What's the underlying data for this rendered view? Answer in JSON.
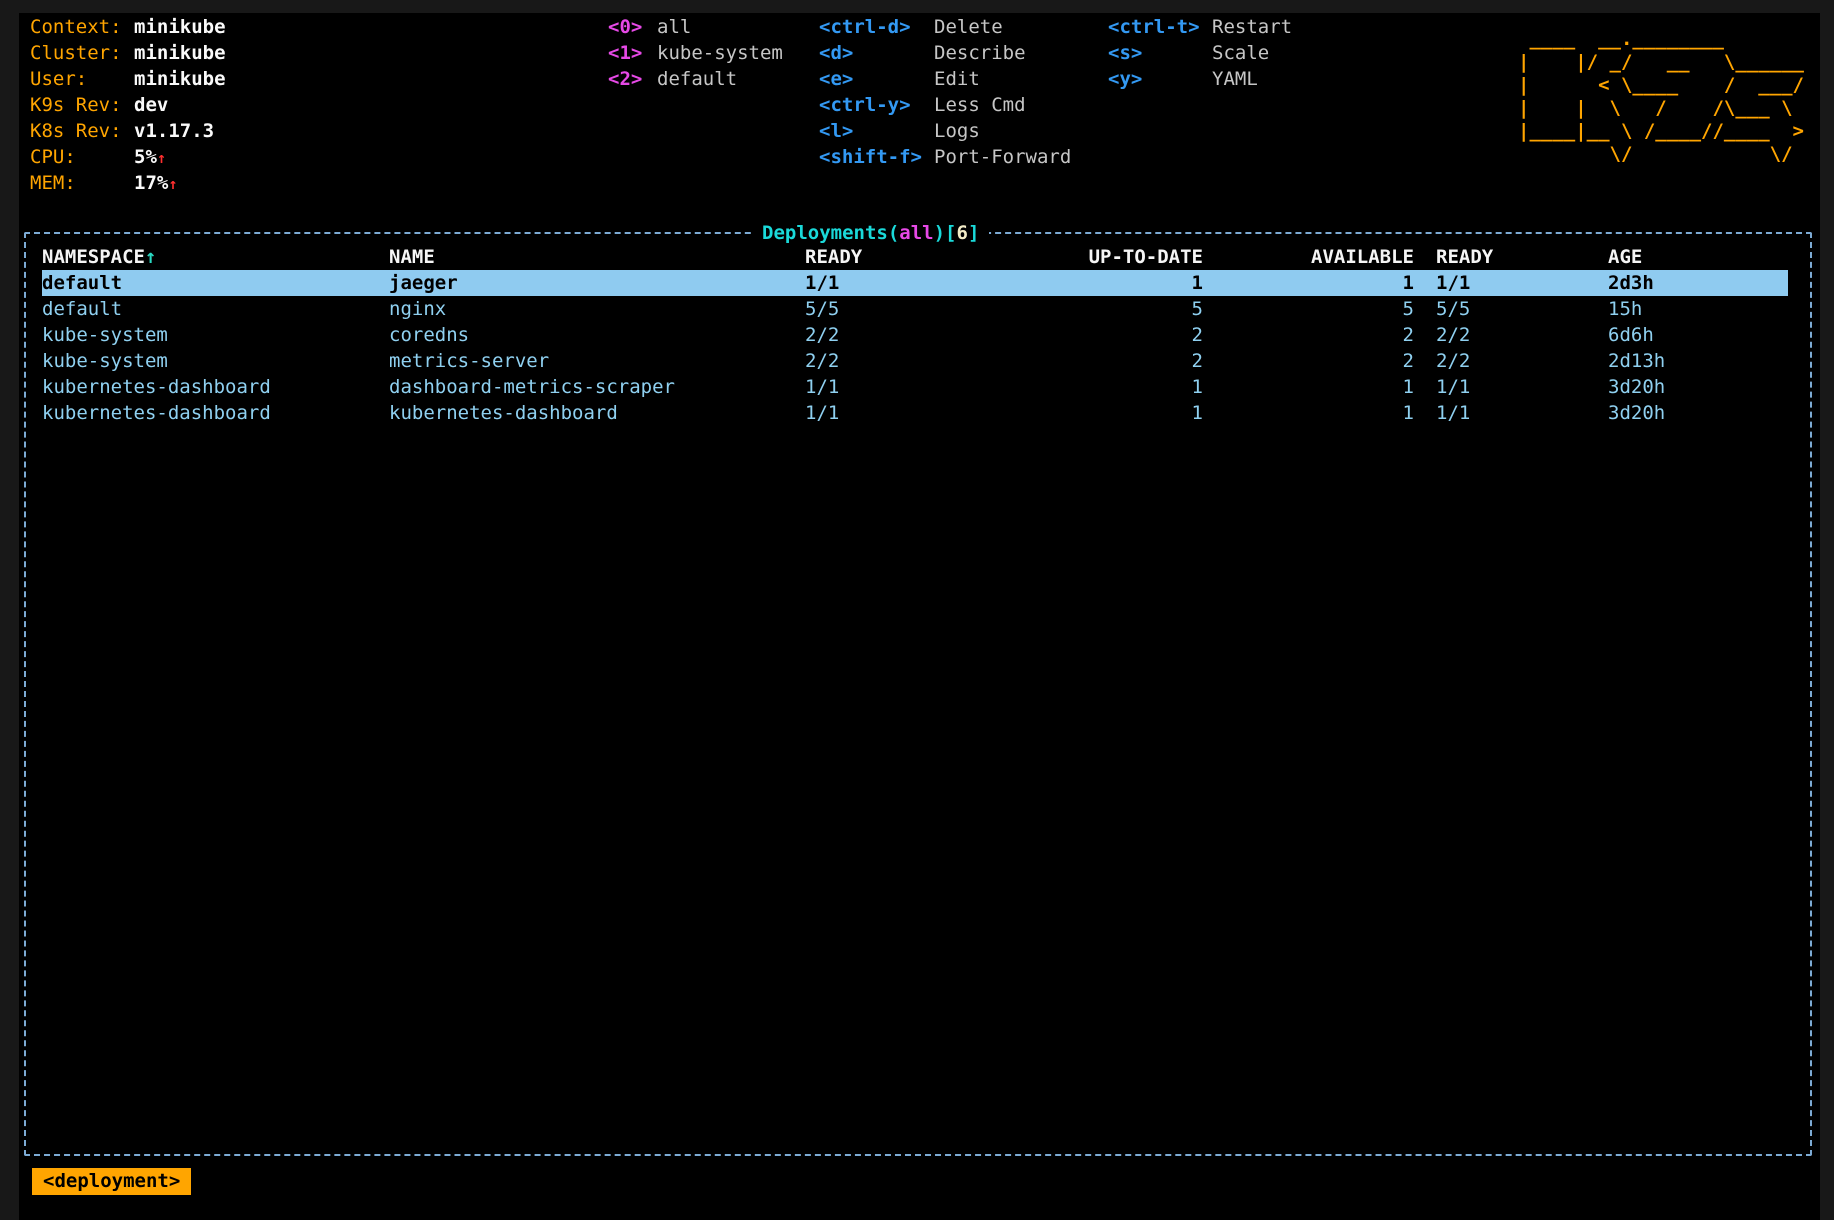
{
  "colors": {
    "accent_orange": "#ffa500",
    "border_blue": "#7caad4",
    "row_text_blue": "#8fd0f0",
    "selected_row_bg": "#8fcbf0",
    "hotkey_blue": "#3399f3",
    "hotkey_magenta": "#e649e6",
    "title_cyan": "#1ad9d9",
    "count_cream": "#f3ecc7",
    "alert_red": "#ff2f2f"
  },
  "header": {
    "info": [
      {
        "label": "Context:",
        "value": "minikube",
        "arrow": ""
      },
      {
        "label": "Cluster:",
        "value": "minikube",
        "arrow": ""
      },
      {
        "label": "User:",
        "value": "minikube",
        "arrow": ""
      },
      {
        "label": "K9s Rev:",
        "value": "dev",
        "arrow": ""
      },
      {
        "label": "K8s Rev:",
        "value": "v1.17.3",
        "arrow": ""
      },
      {
        "label": "CPU:",
        "value": "5%",
        "arrow": "↑"
      },
      {
        "label": "MEM:",
        "value": "17%",
        "arrow": "↑"
      }
    ],
    "namespaces": [
      {
        "key": "<0>",
        "label": "all"
      },
      {
        "key": "<1>",
        "label": "kube-system"
      },
      {
        "key": "<2>",
        "label": "default"
      }
    ],
    "shortcuts_primary": [
      {
        "key": "<ctrl-d>",
        "label": "Delete"
      },
      {
        "key": "<d>",
        "label": "Describe"
      },
      {
        "key": "<e>",
        "label": "Edit"
      },
      {
        "key": "<ctrl-y>",
        "label": "Less Cmd"
      },
      {
        "key": "<l>",
        "label": "Logs"
      },
      {
        "key": "<shift-f>",
        "label": "Port-Forward"
      }
    ],
    "shortcuts_secondary": [
      {
        "key": "<ctrl-t>",
        "label": "Restart"
      },
      {
        "key": "<s>",
        "label": "Scale"
      },
      {
        "key": "<y>",
        "label": "YAML"
      }
    ],
    "logo_lines": [
      " ____  __.________       ",
      "|    |/ _/   __   \\______",
      "|      < \\____    /  ___/",
      "|    |  \\   /    /\\___ \\ ",
      "|____|__ \\ /____//____  >",
      "        \\/            \\/ "
    ]
  },
  "table": {
    "title": {
      "prefix": "Deployments(",
      "scope": "all",
      "mid": ")[",
      "count": "6",
      "suffix": "]"
    },
    "sort_arrow": "↑",
    "columns": [
      "NAMESPACE",
      "NAME",
      "READY",
      "UP-TO-DATE",
      "AVAILABLE",
      "READY",
      "AGE"
    ],
    "rows": [
      {
        "namespace": "default",
        "name": "jaeger",
        "ready": "1/1",
        "up_to_date": "1",
        "available": "1",
        "ready2": "1/1",
        "age": "2d3h",
        "selected": true
      },
      {
        "namespace": "default",
        "name": "nginx",
        "ready": "5/5",
        "up_to_date": "5",
        "available": "5",
        "ready2": "5/5",
        "age": "15h",
        "selected": false
      },
      {
        "namespace": "kube-system",
        "name": "coredns",
        "ready": "2/2",
        "up_to_date": "2",
        "available": "2",
        "ready2": "2/2",
        "age": "6d6h",
        "selected": false
      },
      {
        "namespace": "kube-system",
        "name": "metrics-server",
        "ready": "2/2",
        "up_to_date": "2",
        "available": "2",
        "ready2": "2/2",
        "age": "2d13h",
        "selected": false
      },
      {
        "namespace": "kubernetes-dashboard",
        "name": "dashboard-metrics-scraper",
        "ready": "1/1",
        "up_to_date": "1",
        "available": "1",
        "ready2": "1/1",
        "age": "3d20h",
        "selected": false
      },
      {
        "namespace": "kubernetes-dashboard",
        "name": "kubernetes-dashboard",
        "ready": "1/1",
        "up_to_date": "1",
        "available": "1",
        "ready2": "1/1",
        "age": "3d20h",
        "selected": false
      }
    ]
  },
  "crumb": {
    "label": "<deployment>"
  }
}
